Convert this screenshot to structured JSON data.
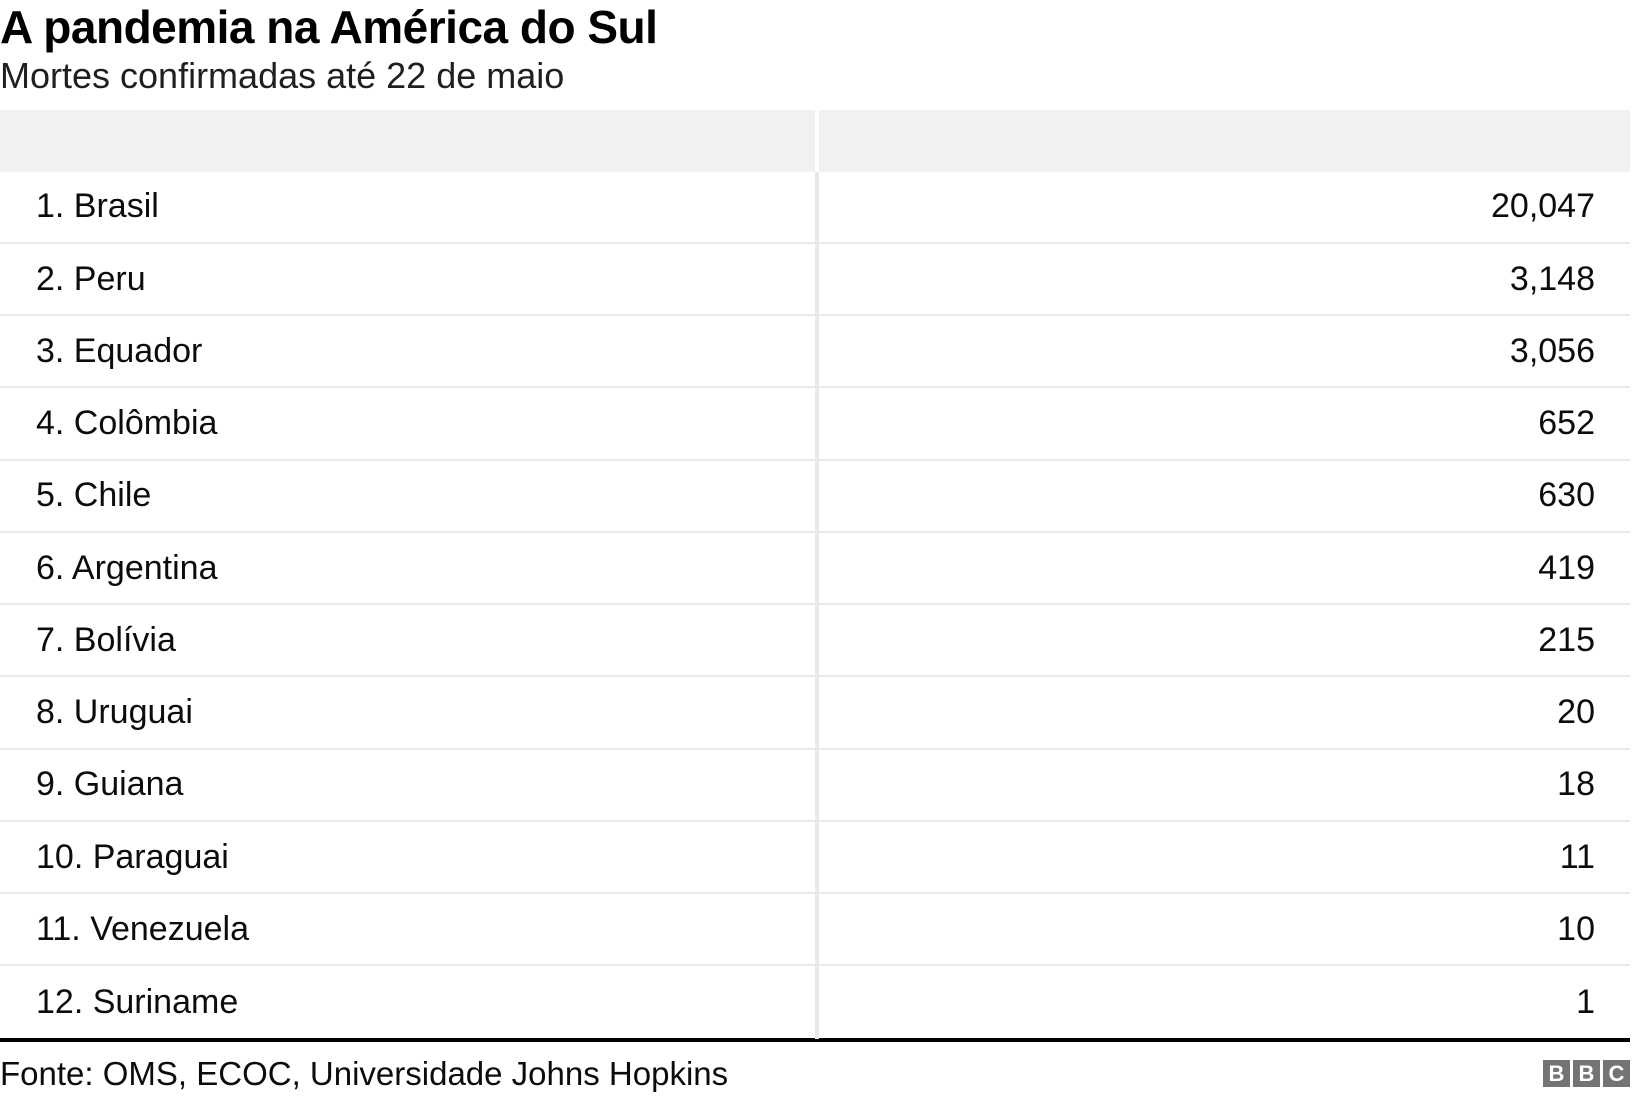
{
  "header": {
    "title": "A pandemia na América do Sul",
    "subtitle": "Mortes confirmadas até 22 de maio"
  },
  "chart_data": {
    "type": "table",
    "title": "A pandemia na América do Sul",
    "subtitle": "Mortes confirmadas até 22 de maio",
    "columns": [
      {
        "name": "country",
        "label": ""
      },
      {
        "name": "deaths",
        "label": ""
      }
    ],
    "rows": [
      {
        "rank": 1,
        "country": "Brasil",
        "deaths": 20047,
        "deaths_display": "20,047"
      },
      {
        "rank": 2,
        "country": "Peru",
        "deaths": 3148,
        "deaths_display": "3,148"
      },
      {
        "rank": 3,
        "country": "Equador",
        "deaths": 3056,
        "deaths_display": "3,056"
      },
      {
        "rank": 4,
        "country": "Colômbia",
        "deaths": 652,
        "deaths_display": "652"
      },
      {
        "rank": 5,
        "country": "Chile",
        "deaths": 630,
        "deaths_display": "630"
      },
      {
        "rank": 6,
        "country": "Argentina",
        "deaths": 419,
        "deaths_display": "419"
      },
      {
        "rank": 7,
        "country": "Bolívia",
        "deaths": 215,
        "deaths_display": "215"
      },
      {
        "rank": 8,
        "country": "Uruguai",
        "deaths": 20,
        "deaths_display": "20"
      },
      {
        "rank": 9,
        "country": "Guiana",
        "deaths": 18,
        "deaths_display": "18"
      },
      {
        "rank": 10,
        "country": "Paraguai",
        "deaths": 11,
        "deaths_display": "11"
      },
      {
        "rank": 11,
        "country": "Venezuela",
        "deaths": 10,
        "deaths_display": "10"
      },
      {
        "rank": 12,
        "country": "Suriname",
        "deaths": 1,
        "deaths_display": "1"
      }
    ],
    "layout": {
      "value_column_alignment": "right",
      "header_row_empty": true
    }
  },
  "footer": {
    "source": "Fonte: OMS, ECOC, Universidade Johns Hopkins",
    "logo_letters": [
      "B",
      "B",
      "C"
    ]
  },
  "colors": {
    "header_bg": "#f1f1f1",
    "row_divider": "#e9e9e9",
    "rule": "#000000",
    "logo_bg": "#747474",
    "logo_text": "#ffffff"
  }
}
